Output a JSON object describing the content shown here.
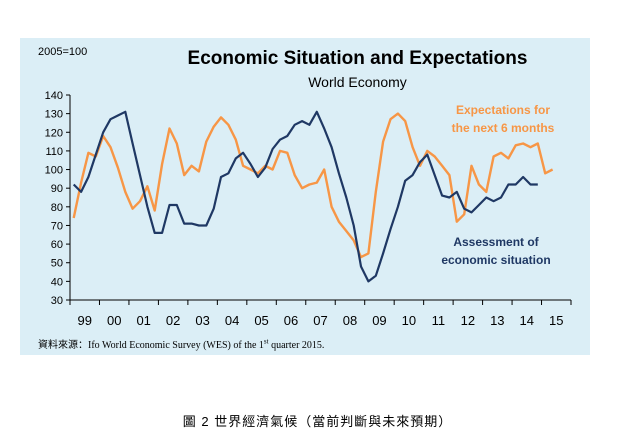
{
  "header": {
    "unit_label": "2005=100",
    "title": "Economic Situation and Expectations",
    "subtitle": "World Economy"
  },
  "source": {
    "prefix": "資料來源：Ifo World Economic Survey (WES) of the 1",
    "sup": "st",
    "suffix": " quarter 2015."
  },
  "caption": "圖  2   世界經濟氣候（當前判斷與未來預期）",
  "chart_data": {
    "type": "line",
    "title": "Economic Situation and Expectations",
    "subtitle": "World Economy",
    "ylabel": "2005=100",
    "ylim": [
      30,
      140
    ],
    "yticks": [
      30,
      40,
      50,
      60,
      70,
      80,
      90,
      100,
      110,
      120,
      130,
      140
    ],
    "x_tick_labels": [
      "99",
      "00",
      "01",
      "02",
      "03",
      "04",
      "05",
      "06",
      "07",
      "08",
      "09",
      "10",
      "11",
      "12",
      "13",
      "14",
      "15"
    ],
    "x_start_year": 1999,
    "quarters_per_year": 4,
    "grid": false,
    "series": [
      {
        "name": "Expectations for the next 6 months",
        "label_lines": [
          "Expectations for",
          "the next 6 months"
        ],
        "color": "#f79646",
        "values": [
          74,
          93,
          109,
          107,
          118,
          112,
          101,
          88,
          79,
          83,
          91,
          78,
          103,
          122,
          114,
          97,
          102,
          99,
          115,
          123,
          128,
          124,
          116,
          102,
          100,
          98,
          102,
          100,
          110,
          109,
          97,
          90,
          92,
          93,
          100,
          80,
          72,
          67,
          62,
          53,
          55,
          88,
          115,
          127,
          130,
          126,
          112,
          102,
          110,
          107,
          102,
          97,
          72,
          76,
          102,
          92,
          88,
          107,
          109,
          106,
          113,
          114,
          112,
          114,
          98,
          100
        ]
      },
      {
        "name": "Assessment of economic situation",
        "label_lines": [
          "Assessment of",
          "economic situation"
        ],
        "color": "#1f3864",
        "values": [
          92,
          88,
          96,
          108,
          120,
          127,
          129,
          131,
          114,
          97,
          80,
          66,
          66,
          81,
          81,
          71,
          71,
          70,
          70,
          79,
          96,
          98,
          106,
          109,
          103,
          96,
          101,
          111,
          116,
          118,
          124,
          126,
          124,
          131,
          122,
          112,
          98,
          85,
          70,
          48,
          40,
          43,
          55,
          68,
          80,
          94,
          97,
          104,
          108,
          97,
          86,
          85,
          88,
          79,
          77,
          81,
          85,
          83,
          85,
          92,
          92,
          96,
          92,
          92
        ]
      }
    ]
  }
}
